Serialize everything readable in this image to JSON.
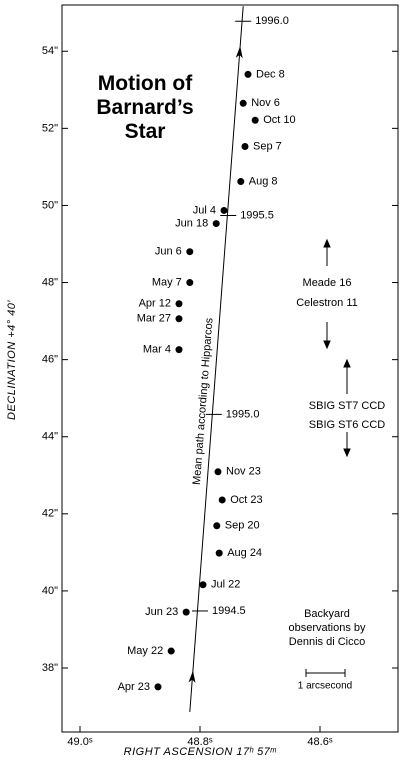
{
  "chart_data": {
    "type": "scatter",
    "title": "Motion of Barnard’s Star",
    "x_label": "RIGHT ASCENSION 17ʰ 57ᵐ",
    "y_label": "DECLINATION +4° 40′",
    "xlim": [
      49.03,
      48.47
    ],
    "ylim": [
      36.34,
      55.2
    ],
    "xticks": [
      {
        "value": 49.0,
        "label": "49.0ˢ"
      },
      {
        "value": 48.8,
        "label": "48.8ˢ"
      },
      {
        "value": 48.6,
        "label": "48.6ˢ"
      }
    ],
    "yticks": [
      {
        "value": 38,
        "label": "38\""
      },
      {
        "value": 40,
        "label": "40\""
      },
      {
        "value": 42,
        "label": "42\""
      },
      {
        "value": 44,
        "label": "44\""
      },
      {
        "value": 46,
        "label": "46\""
      },
      {
        "value": 48,
        "label": "48\""
      },
      {
        "value": 50,
        "label": "50\""
      },
      {
        "value": 52,
        "label": "52\""
      },
      {
        "value": 54,
        "label": "54\""
      }
    ],
    "color": "#000000",
    "labels": [
      "Apr 23",
      "May 22",
      "Jun 23",
      "Jul 22",
      "Aug 24",
      "Sep 20",
      "Oct 23",
      "Nov 23",
      "Mar 4",
      "Mar 27",
      "Apr 12",
      "May 7",
      "Jun 6",
      "Jun 18",
      "Jul 4",
      "Aug 8",
      "Sep 7",
      "Oct 10",
      "Nov 6",
      "Dec 8"
    ],
    "x": [
      48.87,
      48.848,
      48.823,
      48.795,
      48.768,
      48.772,
      48.763,
      48.77,
      48.835,
      48.835,
      48.835,
      48.817,
      48.817,
      48.773,
      48.76,
      48.732,
      48.725,
      48.708,
      48.728,
      48.72
    ],
    "values": [
      37.51,
      38.44,
      39.45,
      40.16,
      40.98,
      41.69,
      42.36,
      43.09,
      46.26,
      47.06,
      47.45,
      48.0,
      48.8,
      49.53,
      49.87,
      50.62,
      51.53,
      52.21,
      52.65,
      53.4
    ],
    "path": {
      "label": "Mean path according to Hipparcos",
      "x": [
        48.817,
        48.728
      ],
      "values": [
        36.86,
        55.17
      ]
    },
    "epochs": {
      "labels": [
        "1994.5",
        "1995.0",
        "1995.5",
        "1996.0"
      ],
      "x": [
        48.8,
        48.777,
        48.753,
        48.728
      ],
      "values": [
        39.48,
        44.58,
        49.74,
        54.78
      ]
    },
    "instruments": [
      "Meade 16",
      "Celestron 11",
      "SBIG ST7 CCD",
      "SBIG ST6 CCD"
    ],
    "note": [
      "Backyard",
      "observations by",
      "Dennis di Cicco"
    ],
    "scale_label": "1 arcsecond"
  }
}
